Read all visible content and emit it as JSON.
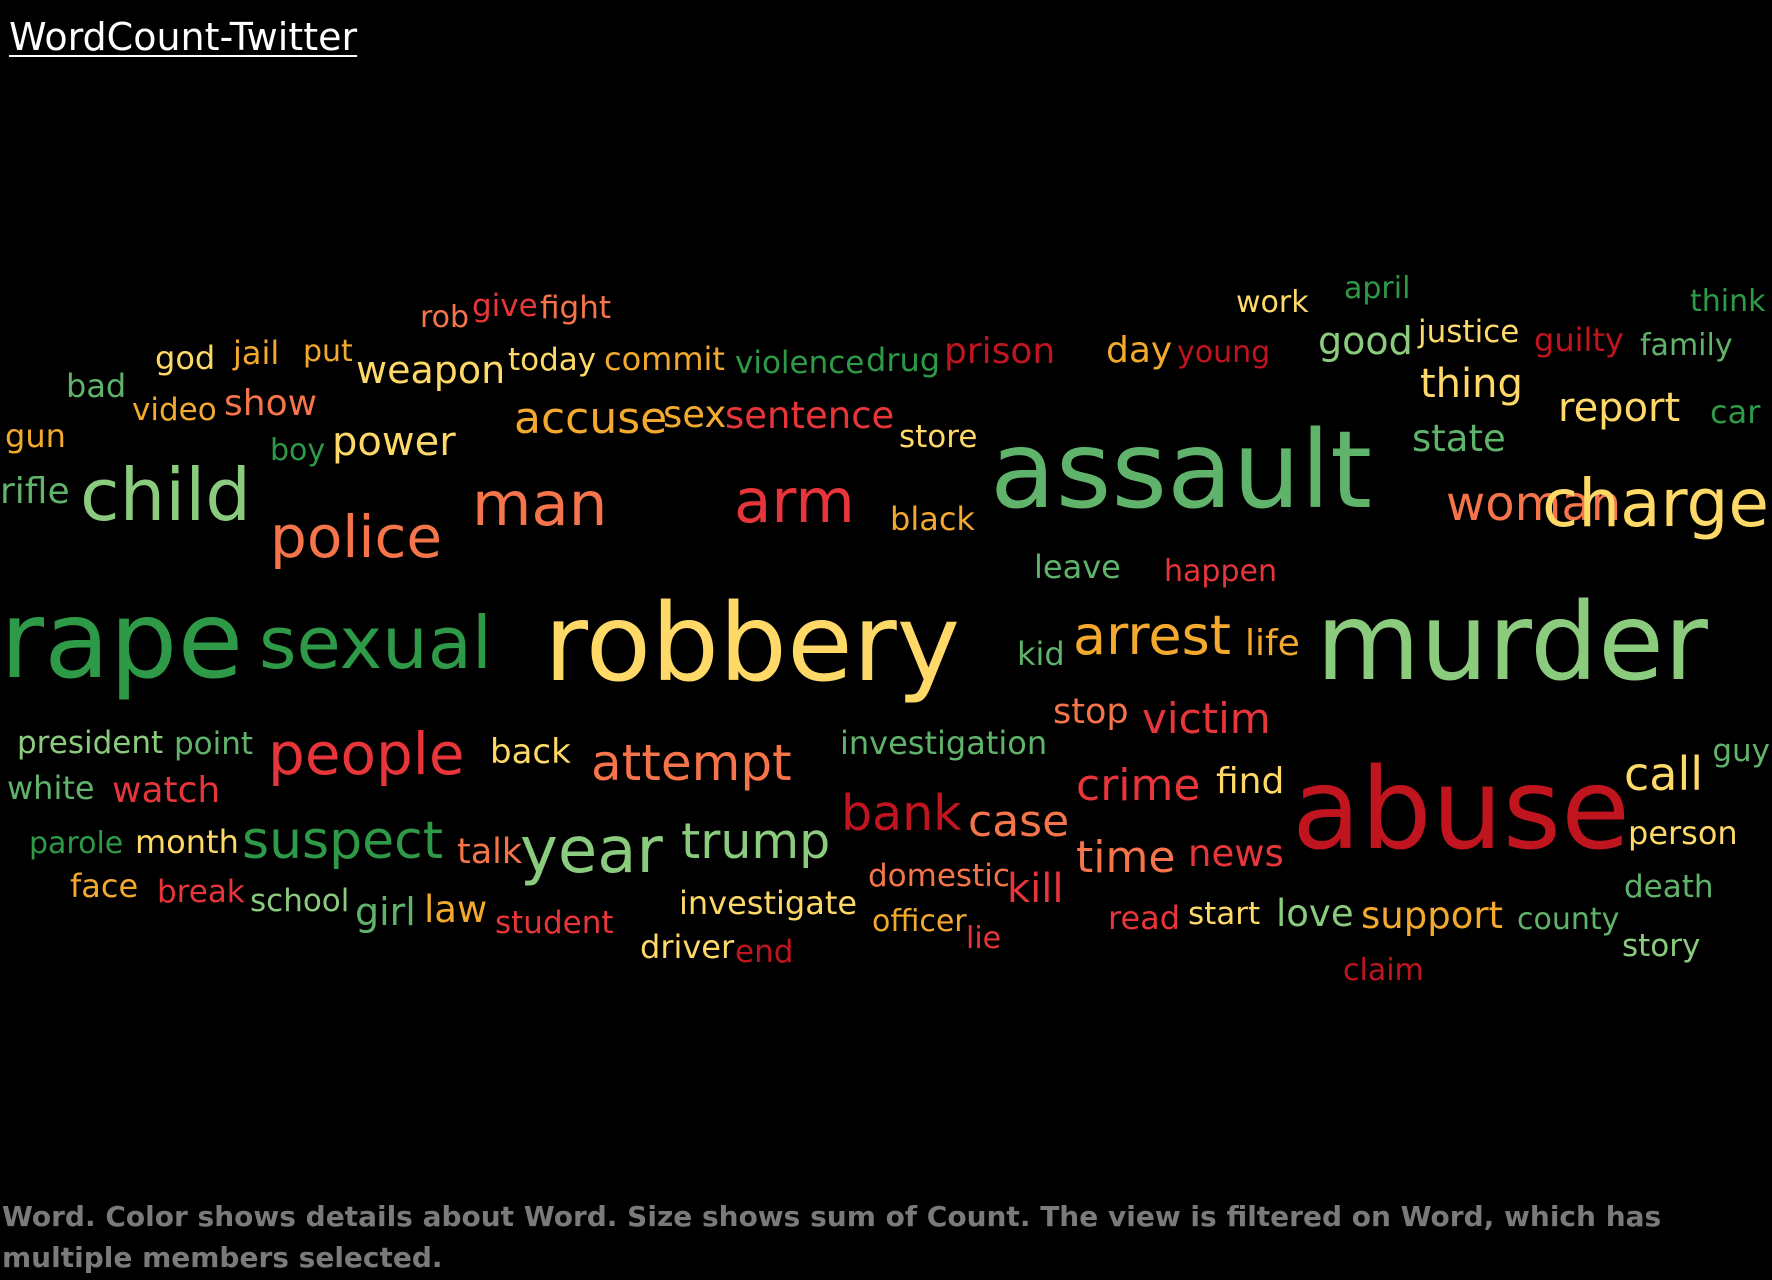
{
  "title": "WordCount-Twitter",
  "caption": "Word.  Color shows details about Word.  Size shows sum of Count. The view is filtered on Word, which has multiple members selected.",
  "palette": {
    "dark_green": "#2E9A48",
    "green": "#5FB36A",
    "light_green": "#8BCB7E",
    "yellow": "#FFD967",
    "gold": "#F2A92E",
    "salmon": "#F5744A",
    "red": "#E8353A",
    "dark_red": "#C0141F"
  },
  "chart_data": {
    "type": "word_cloud",
    "size_encodes": "Count",
    "color_encodes": "Word",
    "words": [
      {
        "text": "rob",
        "color": "#F5744A"
      },
      {
        "text": "give",
        "color": "#E8353A"
      },
      {
        "text": "fight",
        "color": "#F5744A"
      },
      {
        "text": "work",
        "color": "#FFD967"
      },
      {
        "text": "april",
        "color": "#2E9A48"
      },
      {
        "text": "think",
        "color": "#2E9A48"
      },
      {
        "text": "god",
        "color": "#FFD967"
      },
      {
        "text": "jail",
        "color": "#F2A92E"
      },
      {
        "text": "put",
        "color": "#F2A92E"
      },
      {
        "text": "weapon",
        "color": "#FFD967"
      },
      {
        "text": "today",
        "color": "#FFD967"
      },
      {
        "text": "commit",
        "color": "#F2A92E"
      },
      {
        "text": "violence",
        "color": "#2E9A48"
      },
      {
        "text": "drug",
        "color": "#2E9A48"
      },
      {
        "text": "prison",
        "color": "#C0141F"
      },
      {
        "text": "day",
        "color": "#F2A92E"
      },
      {
        "text": "young",
        "color": "#C0141F"
      },
      {
        "text": "good",
        "color": "#8BCB7E"
      },
      {
        "text": "justice",
        "color": "#FFD967"
      },
      {
        "text": "guilty",
        "color": "#C0141F"
      },
      {
        "text": "family",
        "color": "#5FB36A"
      },
      {
        "text": "bad",
        "color": "#5FB36A"
      },
      {
        "text": "video",
        "color": "#F2A92E"
      },
      {
        "text": "show",
        "color": "#F5744A"
      },
      {
        "text": "thing",
        "color": "#FFD967"
      },
      {
        "text": "gun",
        "color": "#F2A92E"
      },
      {
        "text": "accuse",
        "color": "#F2A92E"
      },
      {
        "text": "sex",
        "color": "#F2A92E"
      },
      {
        "text": "sentence",
        "color": "#E8353A"
      },
      {
        "text": "report",
        "color": "#FFD967"
      },
      {
        "text": "car",
        "color": "#2E9A48"
      },
      {
        "text": "boy",
        "color": "#2E9A48"
      },
      {
        "text": "power",
        "color": "#FFD967"
      },
      {
        "text": "store",
        "color": "#FFD967"
      },
      {
        "text": "assault",
        "color": "#5FB36A"
      },
      {
        "text": "state",
        "color": "#5FB36A"
      },
      {
        "text": "rifle",
        "color": "#5FB36A"
      },
      {
        "text": "child",
        "color": "#8BCB7E"
      },
      {
        "text": "woman",
        "color": "#F5744A"
      },
      {
        "text": "man",
        "color": "#F5744A"
      },
      {
        "text": "arm",
        "color": "#E8353A"
      },
      {
        "text": "charge",
        "color": "#FFD967"
      },
      {
        "text": "police",
        "color": "#F5744A"
      },
      {
        "text": "black",
        "color": "#F2A92E"
      },
      {
        "text": "leave",
        "color": "#5FB36A"
      },
      {
        "text": "happen",
        "color": "#E8353A"
      },
      {
        "text": "rape",
        "color": "#2E9A48"
      },
      {
        "text": "sexual",
        "color": "#2E9A48"
      },
      {
        "text": "robbery",
        "color": "#FFD967"
      },
      {
        "text": "kid",
        "color": "#5FB36A"
      },
      {
        "text": "arrest",
        "color": "#F2A92E"
      },
      {
        "text": "life",
        "color": "#F2A92E"
      },
      {
        "text": "murder",
        "color": "#8BCB7E"
      },
      {
        "text": "stop",
        "color": "#F5744A"
      },
      {
        "text": "victim",
        "color": "#E8353A"
      },
      {
        "text": "president",
        "color": "#8BCB7E"
      },
      {
        "text": "point",
        "color": "#5FB36A"
      },
      {
        "text": "people",
        "color": "#E8353A"
      },
      {
        "text": "back",
        "color": "#FFD967"
      },
      {
        "text": "attempt",
        "color": "#F5744A"
      },
      {
        "text": "investigation",
        "color": "#5FB36A"
      },
      {
        "text": "guy",
        "color": "#5FB36A"
      },
      {
        "text": "white",
        "color": "#5FB36A"
      },
      {
        "text": "watch",
        "color": "#E8353A"
      },
      {
        "text": "crime",
        "color": "#E8353A"
      },
      {
        "text": "find",
        "color": "#FFD967"
      },
      {
        "text": "abuse",
        "color": "#C0141F"
      },
      {
        "text": "call",
        "color": "#FFD967"
      },
      {
        "text": "bank",
        "color": "#C0141F"
      },
      {
        "text": "case",
        "color": "#F5744A"
      },
      {
        "text": "parole",
        "color": "#2E9A48"
      },
      {
        "text": "month",
        "color": "#FFD967"
      },
      {
        "text": "suspect",
        "color": "#2E9A48"
      },
      {
        "text": "talk",
        "color": "#F5744A"
      },
      {
        "text": "year",
        "color": "#8BCB7E"
      },
      {
        "text": "trump",
        "color": "#8BCB7E"
      },
      {
        "text": "person",
        "color": "#FFD967"
      },
      {
        "text": "time",
        "color": "#F5744A"
      },
      {
        "text": "news",
        "color": "#E8353A"
      },
      {
        "text": "domestic",
        "color": "#F5744A"
      },
      {
        "text": "face",
        "color": "#F2A92E"
      },
      {
        "text": "break",
        "color": "#E8353A"
      },
      {
        "text": "school",
        "color": "#8BCB7E"
      },
      {
        "text": "kill",
        "color": "#E8353A"
      },
      {
        "text": "death",
        "color": "#5FB36A"
      },
      {
        "text": "girl",
        "color": "#5FB36A"
      },
      {
        "text": "law",
        "color": "#F2A92E"
      },
      {
        "text": "investigate",
        "color": "#FFD967"
      },
      {
        "text": "read",
        "color": "#E8353A"
      },
      {
        "text": "start",
        "color": "#FFD967"
      },
      {
        "text": "love",
        "color": "#8BCB7E"
      },
      {
        "text": "support",
        "color": "#F2A92E"
      },
      {
        "text": "county",
        "color": "#5FB36A"
      },
      {
        "text": "student",
        "color": "#E8353A"
      },
      {
        "text": "officer",
        "color": "#F2A92E"
      },
      {
        "text": "lie",
        "color": "#E8353A"
      },
      {
        "text": "story",
        "color": "#8BCB7E"
      },
      {
        "text": "driver",
        "color": "#FFD967"
      },
      {
        "text": "end",
        "color": "#C0141F"
      },
      {
        "text": "claim",
        "color": "#C0141F"
      }
    ]
  }
}
